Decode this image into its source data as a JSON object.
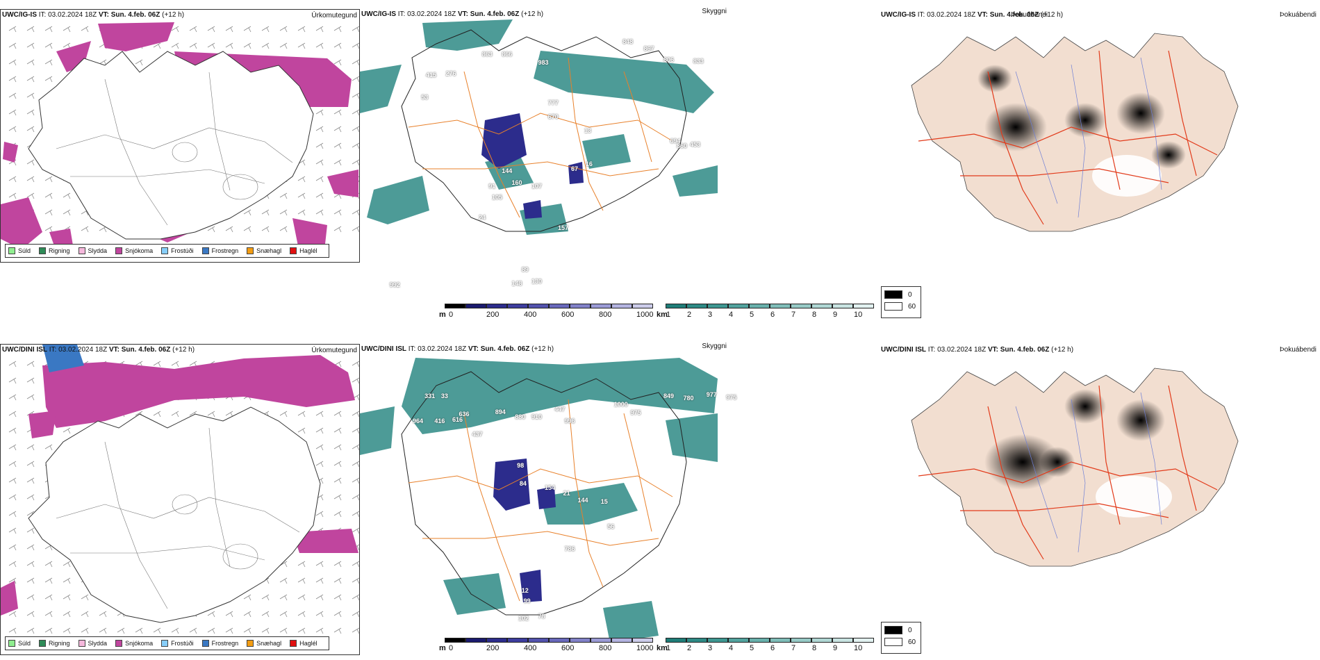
{
  "rows": [
    {
      "model": "UWC/IG-IS",
      "it_label": "IT:",
      "it_value": "03.02.2024 18Z",
      "vt_label": "VT:",
      "vt_value": "Sun. 4.feb. 06Z",
      "lead": "(+12 h)",
      "cloud_values": [
        "863",
        "866",
        "983",
        "848",
        "867",
        "806",
        "833",
        "415",
        "276",
        "53",
        "777",
        "670",
        "694",
        "860",
        "453",
        "13",
        "16",
        "144",
        "91",
        "160",
        "105",
        "107",
        "67",
        "157",
        "24",
        "89",
        "148",
        "130",
        "992"
      ]
    },
    {
      "model": "UWC/DINI ISL",
      "it_label": "IT:",
      "it_value": "03.02.2024 18Z",
      "vt_label": "VT:",
      "vt_value": "Sun. 4.feb. 06Z",
      "lead": "(+12 h)",
      "cloud_values": [
        "331",
        "33",
        "964",
        "416",
        "616",
        "636",
        "437",
        "894",
        "880",
        "910",
        "447",
        "996",
        "1000",
        "975",
        "849",
        "780",
        "977",
        "975",
        "98",
        "84",
        "154",
        "21",
        "144",
        "15",
        "786",
        "56",
        "12",
        "99",
        "102",
        "78"
      ]
    }
  ],
  "fields": {
    "precip": "Úrkomutegund",
    "cloud": "Skyggni",
    "fog": "Þokuábendi"
  },
  "precip_legend": [
    {
      "label": "Súld",
      "color": "#90ee90"
    },
    {
      "label": "Rigning",
      "color": "#2e8b57"
    },
    {
      "label": "Slydda",
      "color": "#f5b8dc"
    },
    {
      "label": "Snjókoma",
      "color": "#c0459e"
    },
    {
      "label": "Frostúði",
      "color": "#87cefa"
    },
    {
      "label": "Frostregn",
      "color": "#3a78c3"
    },
    {
      "label": "Snæhagl",
      "color": "#f39c12"
    },
    {
      "label": "Haglél",
      "color": "#e01010"
    }
  ],
  "cloudbase_bar": {
    "unit": "m",
    "ticks": [
      "0",
      "200",
      "400",
      "600",
      "800",
      "1000"
    ],
    "colors": [
      "#000000",
      "#1a1a6e",
      "#2c2c8c",
      "#3d3d9e",
      "#5252ad",
      "#6868bb",
      "#8181c8",
      "#9a9ad5",
      "#b3b3e0",
      "#ccccea"
    ]
  },
  "visibility_bar": {
    "unit": "km",
    "ticks": [
      "1",
      "2",
      "3",
      "4",
      "5",
      "6",
      "7",
      "8",
      "9",
      "10"
    ],
    "colors": [
      "#1f7d78",
      "#2e8a85",
      "#3e9791",
      "#52a39e",
      "#68b0ab",
      "#7fbdb8",
      "#97cac6",
      "#b0d7d4",
      "#c9e4e2",
      "#e2f1f0"
    ]
  },
  "fog_legend": {
    "items": [
      {
        "label": "0",
        "color": "#000000"
      },
      {
        "label": "60",
        "color": "#ffffff"
      }
    ]
  },
  "colors": {
    "snow": "#c0459e",
    "cloud_teal": "#2e8a85",
    "low_cloud": "#2c2c8c",
    "land_fog": "#f2ded0",
    "roads": "#e8802a",
    "roads_red": "#e23a1a"
  }
}
